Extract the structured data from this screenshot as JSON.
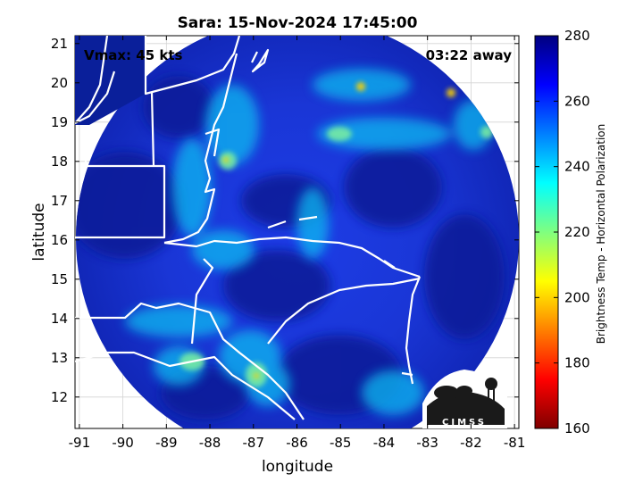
{
  "title": "Sara: 15-Nov-2024 17:45:00",
  "vmax_label": "Vmax: 45 kts",
  "time_away": "03:22 away",
  "xlabel": "longitude",
  "ylabel": "latitude",
  "x_ticks": [
    "-91",
    "-90",
    "-89",
    "-88",
    "-87",
    "-86",
    "-85",
    "-84",
    "-83",
    "-82",
    "-81"
  ],
  "y_ticks": [
    "21",
    "20",
    "19",
    "18",
    "17",
    "16",
    "15",
    "14",
    "13",
    "12"
  ],
  "colorbar": {
    "label": "Brightness Temp - Horizontal Polarization",
    "ticks": [
      "280",
      "260",
      "240",
      "220",
      "200",
      "180",
      "160"
    ],
    "min": 160,
    "max": 280,
    "colormap": "jet"
  },
  "logo_text": "CIMSS",
  "map_extent": {
    "lon": [
      -91.1,
      -80.9
    ],
    "lat": [
      11.2,
      21.2
    ]
  },
  "swath_center": {
    "lon": -86.0,
    "lat": 16.2
  },
  "colors": {
    "cold_ocean": "#0a1d8c",
    "coast": "#ffffff",
    "grid": "#c8c8c8"
  }
}
